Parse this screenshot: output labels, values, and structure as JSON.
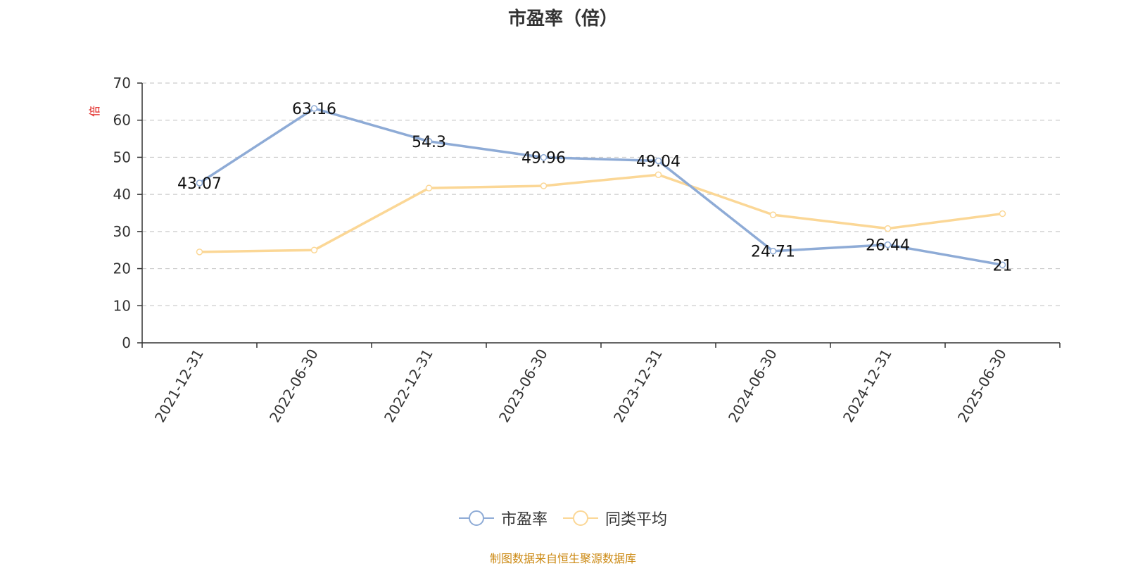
{
  "chart_data": {
    "type": "line",
    "title": "市盈率（倍）",
    "ylabel": "倍",
    "ylim": [
      0,
      70
    ],
    "yticks": [
      0,
      10,
      20,
      30,
      40,
      50,
      60,
      70
    ],
    "categories": [
      "2021-12-31",
      "2022-06-30",
      "2022-12-31",
      "2023-06-30",
      "2023-12-31",
      "2024-06-30",
      "2024-12-31",
      "2025-06-30"
    ],
    "grid": true,
    "legend_position": "bottom-center",
    "series": [
      {
        "name": "市盈率",
        "color": "#8eabd6",
        "values": [
          43.07,
          63.16,
          54.3,
          49.96,
          49.04,
          24.71,
          26.44,
          21
        ],
        "data_labels": [
          "43.07",
          "63.16",
          "54.3",
          "49.96",
          "49.04",
          "24.71",
          "26.44",
          "21"
        ]
      },
      {
        "name": "同类平均",
        "color": "#fbd796",
        "values": [
          24.5,
          25.0,
          41.7,
          42.3,
          45.3,
          34.5,
          30.8,
          34.8
        ]
      }
    ]
  },
  "footer": {
    "source_note": "制图数据来自恒生聚源数据库"
  },
  "colors": {
    "axis_label": "#e0201d",
    "source_note": "#cc8a14"
  }
}
